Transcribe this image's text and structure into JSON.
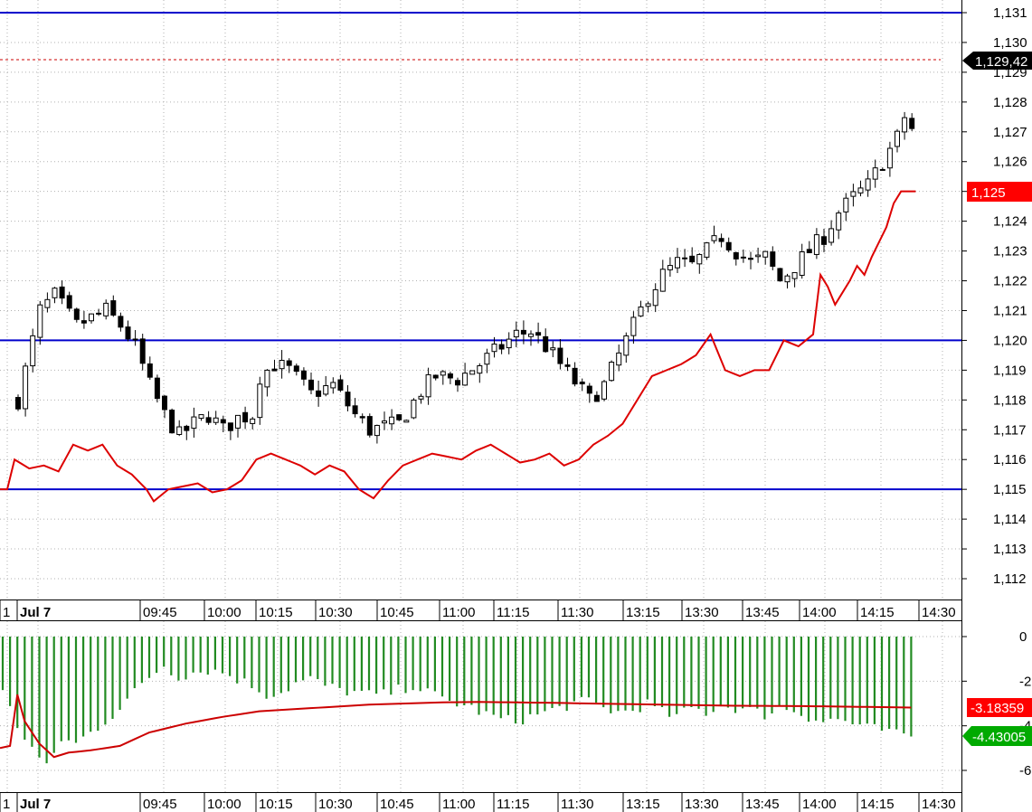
{
  "chart_data": [
    {
      "type": "candlestick",
      "price_axis": {
        "ticks": [
          "1,112",
          "1,113",
          "1,114",
          "1,115",
          "1,116",
          "1,117",
          "1,118",
          "1,119",
          "1,120",
          "1,121",
          "1,122",
          "1,123",
          "1,124",
          "1,125",
          "1,126",
          "1,127",
          "1,128",
          "1,129",
          "1,130",
          "1,131"
        ],
        "ylim": [
          1.1115,
          1.1314
        ]
      },
      "time_axis": {
        "labels": [
          "1",
          "Jul 7",
          "09:45",
          "10:00",
          "10:15",
          "10:30",
          "10:45",
          "11:00",
          "11:15",
          "11:30",
          "13:15",
          "13:30",
          "13:45",
          "14:00",
          "14:15",
          "14:30"
        ]
      },
      "horizontal_lines": [
        {
          "value": 1.131,
          "style": "solid",
          "color": "#0000cc"
        },
        {
          "value": 1.12,
          "style": "solid",
          "color": "#0000cc"
        },
        {
          "value": 1.115,
          "style": "solid",
          "color": "#0000cc"
        },
        {
          "value": 1.12942,
          "style": "dashed",
          "color": "#cc0000"
        }
      ],
      "price_key_points": [
        [
          0,
          1.118
        ],
        [
          2,
          1.12
        ],
        [
          3,
          1.121
        ],
        [
          5,
          1.1215
        ],
        [
          8,
          1.1205
        ],
        [
          12,
          1.121
        ],
        [
          14,
          1.1205
        ],
        [
          16,
          1.1198
        ],
        [
          18,
          1.1185
        ],
        [
          20,
          1.1175
        ],
        [
          22,
          1.1168
        ],
        [
          24,
          1.1172
        ],
        [
          26,
          1.1175
        ],
        [
          28,
          1.117
        ],
        [
          30,
          1.1174
        ],
        [
          32,
          1.1175
        ],
        [
          33,
          1.1188
        ],
        [
          35,
          1.1192
        ],
        [
          37,
          1.119
        ],
        [
          40,
          1.1182
        ],
        [
          43,
          1.1185
        ],
        [
          46,
          1.1175
        ],
        [
          48,
          1.117
        ],
        [
          52,
          1.1172
        ],
        [
          55,
          1.1183
        ],
        [
          57,
          1.1188
        ],
        [
          60,
          1.1187
        ],
        [
          63,
          1.1192
        ],
        [
          66,
          1.1198
        ],
        [
          68,
          1.1202
        ],
        [
          70,
          1.1203
        ],
        [
          72,
          1.1198
        ],
        [
          74,
          1.1192
        ],
        [
          76,
          1.1186
        ],
        [
          78,
          1.118
        ],
        [
          80,
          1.1185
        ],
        [
          82,
          1.1195
        ],
        [
          84,
          1.1205
        ],
        [
          86,
          1.1215
        ],
        [
          88,
          1.1222
        ],
        [
          90,
          1.1226
        ],
        [
          92,
          1.1225
        ],
        [
          94,
          1.123
        ],
        [
          96,
          1.1235
        ],
        [
          98,
          1.123
        ],
        [
          100,
          1.1226
        ],
        [
          102,
          1.1228
        ],
        [
          104,
          1.122
        ],
        [
          106,
          1.1225
        ],
        [
          108,
          1.123
        ],
        [
          110,
          1.1235
        ],
        [
          112,
          1.1243
        ],
        [
          114,
          1.1248
        ],
        [
          116,
          1.1252
        ],
        [
          118,
          1.126
        ],
        [
          120,
          1.1268
        ],
        [
          121,
          1.1275
        ],
        [
          122,
          1.1271
        ]
      ],
      "last_price": {
        "label": "1,129,42",
        "color": "#000000"
      },
      "indicator": {
        "name": "",
        "color": "#dd0000",
        "last_label": "1,125",
        "label_color": "#ff0000",
        "key_points": [
          [
            0,
            1.115
          ],
          [
            1,
            1.116
          ],
          [
            3,
            1.1157
          ],
          [
            5,
            1.1158
          ],
          [
            7,
            1.1156
          ],
          [
            9,
            1.1165
          ],
          [
            11,
            1.1163
          ],
          [
            13,
            1.1165
          ],
          [
            15,
            1.1158
          ],
          [
            17,
            1.1155
          ],
          [
            19,
            1.115
          ],
          [
            20,
            1.1146
          ],
          [
            22,
            1.115
          ],
          [
            24,
            1.1151
          ],
          [
            26,
            1.1152
          ],
          [
            28,
            1.1149
          ],
          [
            30,
            1.115
          ],
          [
            32,
            1.1153
          ],
          [
            34,
            1.116
          ],
          [
            36,
            1.1162
          ],
          [
            38,
            1.116
          ],
          [
            40,
            1.1158
          ],
          [
            42,
            1.1155
          ],
          [
            44,
            1.1158
          ],
          [
            46,
            1.1156
          ],
          [
            48,
            1.115
          ],
          [
            50,
            1.1147
          ],
          [
            52,
            1.1153
          ],
          [
            54,
            1.1158
          ],
          [
            56,
            1.116
          ],
          [
            58,
            1.1162
          ],
          [
            60,
            1.1161
          ],
          [
            62,
            1.116
          ],
          [
            64,
            1.1163
          ],
          [
            66,
            1.1165
          ],
          [
            68,
            1.1162
          ],
          [
            70,
            1.1159
          ],
          [
            72,
            1.116
          ],
          [
            74,
            1.1162
          ],
          [
            76,
            1.1158
          ],
          [
            78,
            1.116
          ],
          [
            80,
            1.1165
          ],
          [
            82,
            1.1168
          ],
          [
            84,
            1.1172
          ],
          [
            86,
            1.118
          ],
          [
            88,
            1.1188
          ],
          [
            90,
            1.119
          ],
          [
            92,
            1.1192
          ],
          [
            94,
            1.1195
          ],
          [
            96,
            1.1202
          ],
          [
            98,
            1.119
          ],
          [
            100,
            1.1188
          ],
          [
            102,
            1.119
          ],
          [
            104,
            1.119
          ],
          [
            106,
            1.12
          ],
          [
            108,
            1.1198
          ],
          [
            110,
            1.1202
          ],
          [
            111,
            1.1222
          ],
          [
            112,
            1.1218
          ],
          [
            113,
            1.1212
          ],
          [
            114,
            1.1216
          ],
          [
            115,
            1.122
          ],
          [
            116,
            1.1225
          ],
          [
            117,
            1.1222
          ],
          [
            118,
            1.1228
          ],
          [
            120,
            1.1238
          ],
          [
            121,
            1.1246
          ],
          [
            122,
            1.125
          ],
          [
            124,
            1.125
          ]
        ]
      }
    },
    {
      "type": "bar",
      "value_axis": {
        "ticks": [
          "0",
          "-2",
          "-4",
          "-6"
        ],
        "ylim": [
          -7.2,
          0
        ]
      },
      "time_axis": {
        "labels": [
          "1",
          "Jul 7",
          "09:45",
          "10:00",
          "10:15",
          "10:30",
          "10:45",
          "11:00",
          "11:15",
          "11:30",
          "13:15",
          "13:30",
          "13:45",
          "14:00",
          "14:15",
          "14:30"
        ]
      },
      "histogram": {
        "color": "#228b22",
        "last_label": "-4.43005",
        "key_points": [
          [
            0,
            -2.5
          ],
          [
            2,
            -4.0
          ],
          [
            4,
            -5.0
          ],
          [
            6,
            -5.9
          ],
          [
            8,
            -4.6
          ],
          [
            10,
            -4.8
          ],
          [
            12,
            -4.3
          ],
          [
            14,
            -3.8
          ],
          [
            16,
            -3.2
          ],
          [
            18,
            -2.5
          ],
          [
            20,
            -1.8
          ],
          [
            22,
            -1.3
          ],
          [
            24,
            -1.8
          ],
          [
            26,
            -1.6
          ],
          [
            28,
            -1.5
          ],
          [
            30,
            -1.6
          ],
          [
            32,
            -1.9
          ],
          [
            34,
            -2.2
          ],
          [
            36,
            -2.6
          ],
          [
            38,
            -2.5
          ],
          [
            40,
            -2.1
          ],
          [
            42,
            -1.9
          ],
          [
            44,
            -2.2
          ],
          [
            46,
            -2.4
          ],
          [
            48,
            -2.5
          ],
          [
            50,
            -2.6
          ],
          [
            52,
            -2.6
          ],
          [
            54,
            -2.4
          ],
          [
            56,
            -2.2
          ],
          [
            58,
            -2.5
          ],
          [
            60,
            -2.8
          ],
          [
            62,
            -3.0
          ],
          [
            64,
            -3.2
          ],
          [
            66,
            -3.5
          ],
          [
            68,
            -3.7
          ],
          [
            70,
            -3.8
          ],
          [
            72,
            -3.6
          ],
          [
            74,
            -3.4
          ],
          [
            76,
            -3.2
          ],
          [
            78,
            -3.0
          ],
          [
            80,
            -2.9
          ],
          [
            82,
            -3.2
          ],
          [
            84,
            -3.4
          ],
          [
            86,
            -3.3
          ],
          [
            88,
            -3.0
          ],
          [
            90,
            -3.4
          ],
          [
            92,
            -3.6
          ],
          [
            94,
            -3.2
          ],
          [
            96,
            -3.4
          ],
          [
            98,
            -3.1
          ],
          [
            100,
            -3.2
          ],
          [
            102,
            -3.3
          ],
          [
            104,
            -3.5
          ],
          [
            106,
            -3.2
          ],
          [
            108,
            -3.3
          ],
          [
            110,
            -3.6
          ],
          [
            112,
            -3.8
          ],
          [
            114,
            -3.7
          ],
          [
            116,
            -3.9
          ],
          [
            118,
            -4.1
          ],
          [
            120,
            -4.2
          ],
          [
            122,
            -4.4
          ],
          [
            124,
            -4.43
          ]
        ]
      },
      "signal_line": {
        "color": "#cc0000",
        "last_label": "-3.18359",
        "label_color": "#ff0000",
        "key_points": [
          [
            0,
            -5.0
          ],
          [
            1,
            -4.9
          ],
          [
            2,
            -2.6
          ],
          [
            3,
            -3.8
          ],
          [
            5,
            -4.8
          ],
          [
            7,
            -5.4
          ],
          [
            9,
            -5.2
          ],
          [
            12,
            -5.1
          ],
          [
            16,
            -4.9
          ],
          [
            20,
            -4.3
          ],
          [
            25,
            -3.9
          ],
          [
            30,
            -3.6
          ],
          [
            35,
            -3.35
          ],
          [
            40,
            -3.25
          ],
          [
            45,
            -3.15
          ],
          [
            50,
            -3.05
          ],
          [
            55,
            -3.0
          ],
          [
            60,
            -2.95
          ],
          [
            65,
            -2.93
          ],
          [
            70,
            -2.95
          ],
          [
            75,
            -2.97
          ],
          [
            80,
            -3.0
          ],
          [
            90,
            -3.05
          ],
          [
            100,
            -3.1
          ],
          [
            110,
            -3.12
          ],
          [
            124,
            -3.18
          ]
        ]
      },
      "label_color": "#00aa00"
    }
  ]
}
